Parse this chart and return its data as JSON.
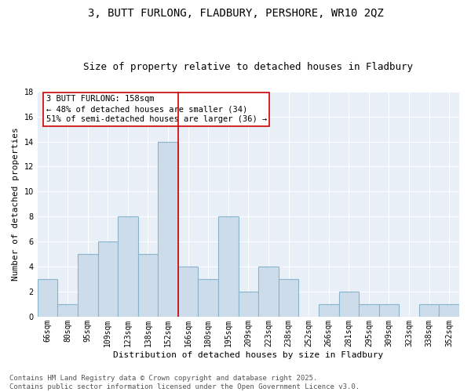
{
  "title": "3, BUTT FURLONG, FLADBURY, PERSHORE, WR10 2QZ",
  "subtitle": "Size of property relative to detached houses in Fladbury",
  "xlabel": "Distribution of detached houses by size in Fladbury",
  "ylabel": "Number of detached properties",
  "bar_labels": [
    "66sqm",
    "80sqm",
    "95sqm",
    "109sqm",
    "123sqm",
    "138sqm",
    "152sqm",
    "166sqm",
    "180sqm",
    "195sqm",
    "209sqm",
    "223sqm",
    "238sqm",
    "252sqm",
    "266sqm",
    "281sqm",
    "295sqm",
    "309sqm",
    "323sqm",
    "338sqm",
    "352sqm"
  ],
  "bar_values": [
    3,
    1,
    5,
    6,
    8,
    5,
    14,
    4,
    3,
    8,
    2,
    4,
    3,
    0,
    1,
    2,
    1,
    1,
    0,
    1,
    1
  ],
  "bar_color": "#ccdcea",
  "bar_edgecolor": "#8ab4cc",
  "bg_color": "#e8eff7",
  "grid_color": "#ffffff",
  "vline_color": "#cc0000",
  "annotation_text": "3 BUTT FURLONG: 158sqm\n← 48% of detached houses are smaller (34)\n51% of semi-detached houses are larger (36) →",
  "annotation_box_color": "#ffffff",
  "annotation_box_edgecolor": "#cc0000",
  "footnote": "Contains HM Land Registry data © Crown copyright and database right 2025.\nContains public sector information licensed under the Open Government Licence v3.0.",
  "ylim": [
    0,
    18
  ],
  "yticks": [
    0,
    2,
    4,
    6,
    8,
    10,
    12,
    14,
    16,
    18
  ],
  "title_fontsize": 10,
  "subtitle_fontsize": 9,
  "axis_fontsize": 8,
  "tick_fontsize": 7,
  "footnote_fontsize": 6.5,
  "annotation_fontsize": 7.5
}
